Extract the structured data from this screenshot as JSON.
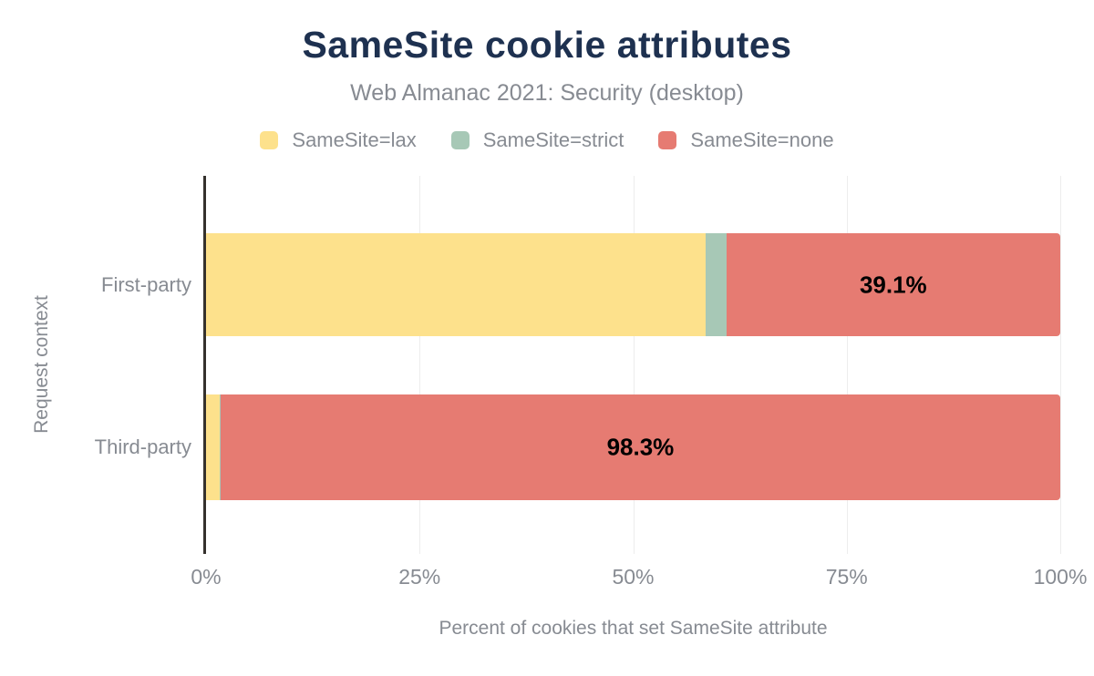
{
  "title": "SameSite cookie attributes",
  "subtitle": "Web Almanac 2021: Security (desktop)",
  "colors": {
    "title": "#1e3150",
    "text": "#878b92",
    "axis": "#35312d",
    "gridline": "#ededed",
    "bar_label": "#000000",
    "background": "#ffffff"
  },
  "legend": [
    {
      "label": "SameSite=lax",
      "color": "#fde18c"
    },
    {
      "label": "SameSite=strict",
      "color": "#a7c8b6"
    },
    {
      "label": "SameSite=none",
      "color": "#e67b72"
    }
  ],
  "chart_data": {
    "type": "bar",
    "orientation": "horizontal",
    "stacked": true,
    "title": "SameSite cookie attributes",
    "subtitle": "Web Almanac 2021: Security (desktop)",
    "categories": [
      "First-party",
      "Third-party"
    ],
    "series": [
      {
        "name": "SameSite=lax",
        "key": "lax",
        "color": "#fde18c",
        "values": [
          58.5,
          1.6
        ],
        "labels": [
          "",
          ""
        ]
      },
      {
        "name": "SameSite=strict",
        "key": "strict",
        "color": "#a7c8b6",
        "values": [
          2.4,
          0.1
        ],
        "labels": [
          "",
          ""
        ]
      },
      {
        "name": "SameSite=none",
        "key": "none",
        "color": "#e67b72",
        "values": [
          39.1,
          98.3
        ],
        "labels": [
          "39.1%",
          "98.3%"
        ]
      }
    ],
    "xlabel": "Percent of cookies that set SameSite attribute",
    "ylabel": "Request context",
    "xlim": [
      0,
      100
    ],
    "x_ticks": [
      {
        "label": "0%",
        "value": 0
      },
      {
        "label": "25%",
        "value": 25
      },
      {
        "label": "50%",
        "value": 50
      },
      {
        "label": "75%",
        "value": 75
      },
      {
        "label": "100%",
        "value": 100
      }
    ],
    "grid": "vertical",
    "legend_position": "top"
  }
}
